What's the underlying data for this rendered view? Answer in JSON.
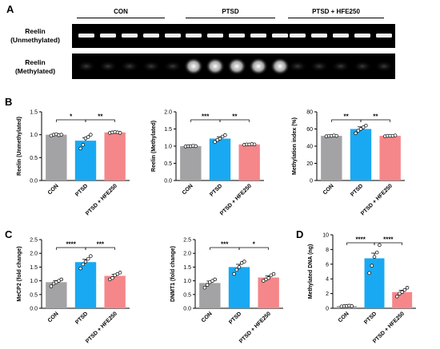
{
  "figure": {
    "panel_labels": [
      "A",
      "B",
      "C",
      "D"
    ],
    "gel": {
      "groups": [
        "CON",
        "PTSD",
        "PTSD + HFE250"
      ],
      "rows": [
        {
          "line1": "Reelin",
          "line2": "(Unmethylated)"
        },
        {
          "line1": "Reelin",
          "line2": "(Methylated)"
        }
      ],
      "lanes_per_group": 5
    }
  },
  "colors": {
    "CON": "#a3a3a6",
    "PTSD": "#19a9f2",
    "PTSD + HFE250": "#f5878a"
  },
  "chart_data": [
    {
      "id": "B1",
      "type": "bar",
      "categories": [
        "CON",
        "PTSD",
        "PTSD + HFE250"
      ],
      "values": [
        1.0,
        0.87,
        1.05
      ],
      "errors": [
        0.02,
        0.06,
        0.015
      ],
      "points": [
        [
          0.98,
          1.0,
          1.01,
          0.99,
          1.0
        ],
        [
          0.7,
          0.78,
          0.92,
          0.95,
          1.0
        ],
        [
          1.04,
          1.05,
          1.06,
          1.05,
          1.04
        ]
      ],
      "ylabel": "Reelin (Unmethylated)",
      "ylim": [
        0,
        1.5
      ],
      "yticks": [
        "0.0",
        "0.5",
        "1.0",
        "1.5"
      ],
      "sig": [
        {
          "from": 0,
          "to": 1,
          "label": "*"
        },
        {
          "from": 1,
          "to": 2,
          "label": "**"
        }
      ]
    },
    {
      "id": "B2",
      "type": "bar",
      "categories": [
        "CON",
        "PTSD",
        "PTSD + HFE250"
      ],
      "values": [
        1.0,
        1.22,
        1.05
      ],
      "errors": [
        0.01,
        0.05,
        0.01
      ],
      "points": [
        [
          0.99,
          1.0,
          1.0,
          1.01,
          1.0
        ],
        [
          1.12,
          1.18,
          1.22,
          1.28,
          1.32
        ],
        [
          1.04,
          1.05,
          1.05,
          1.06,
          1.05
        ]
      ],
      "ylabel": "Reelin (Methylated)",
      "ylim": [
        0,
        2.0
      ],
      "yticks": [
        "0.0",
        "0.5",
        "1.0",
        "1.5",
        "2.0"
      ],
      "sig": [
        {
          "from": 0,
          "to": 1,
          "label": "***"
        },
        {
          "from": 1,
          "to": 2,
          "label": "**"
        }
      ]
    },
    {
      "id": "B3",
      "type": "bar",
      "categories": [
        "CON",
        "PTSD",
        "PTSD + HFE250"
      ],
      "values": [
        52,
        60,
        52
      ],
      "errors": [
        0.5,
        2.5,
        0.5
      ],
      "points": [
        [
          51.5,
          52,
          52,
          52.5,
          52
        ],
        [
          55,
          58,
          60,
          62,
          64
        ],
        [
          51.5,
          52,
          52,
          52,
          52.5
        ]
      ],
      "ylabel": "Methylation index (%)",
      "ylim": [
        0,
        80
      ],
      "yticks": [
        "0",
        "20",
        "40",
        "60",
        "80"
      ],
      "sig": [
        {
          "from": 0,
          "to": 1,
          "label": "**"
        },
        {
          "from": 1,
          "to": 2,
          "label": "**"
        }
      ]
    },
    {
      "id": "C1",
      "type": "bar",
      "categories": [
        "CON",
        "PTSD",
        "PTSD + HFE250"
      ],
      "values": [
        0.95,
        1.68,
        1.18
      ],
      "errors": [
        0.06,
        0.1,
        0.06
      ],
      "points": [
        [
          0.8,
          0.9,
          0.95,
          1.0,
          1.05
        ],
        [
          1.45,
          1.6,
          1.7,
          1.8,
          1.9
        ],
        [
          1.05,
          1.1,
          1.2,
          1.25,
          1.3
        ]
      ],
      "ylabel": "MeCP2 (fold change)",
      "ylim": [
        0,
        2.5
      ],
      "yticks": [
        "0.0",
        "0.5",
        "1.0",
        "1.5",
        "2.0",
        "2.5"
      ],
      "sig": [
        {
          "from": 0,
          "to": 1,
          "label": "****"
        },
        {
          "from": 1,
          "to": 2,
          "label": "***"
        }
      ]
    },
    {
      "id": "C2",
      "type": "bar",
      "categories": [
        "CON",
        "PTSD",
        "PTSD + HFE250"
      ],
      "values": [
        0.92,
        1.5,
        1.12
      ],
      "errors": [
        0.07,
        0.1,
        0.06
      ],
      "points": [
        [
          0.75,
          0.85,
          0.95,
          1.0,
          1.05
        ],
        [
          1.25,
          1.4,
          1.5,
          1.65,
          1.7
        ],
        [
          1.0,
          1.05,
          1.1,
          1.2,
          1.25
        ]
      ],
      "ylabel": "DNMT1 (fold change)",
      "ylim": [
        0,
        2.5
      ],
      "yticks": [
        "0.0",
        "0.5",
        "1.0",
        "1.5",
        "2.0",
        "2.5"
      ],
      "sig": [
        {
          "from": 0,
          "to": 1,
          "label": "***"
        },
        {
          "from": 1,
          "to": 2,
          "label": "*"
        }
      ]
    },
    {
      "id": "D",
      "type": "bar",
      "categories": [
        "CON",
        "PTSD",
        "PTSD + HFE250"
      ],
      "values": [
        0.3,
        6.8,
        2.2
      ],
      "errors": [
        0.05,
        0.7,
        0.25
      ],
      "points": [
        [
          0.25,
          0.3,
          0.3,
          0.35,
          0.3
        ],
        [
          4.8,
          5.8,
          7.0,
          7.6,
          8.6
        ],
        [
          1.6,
          2.0,
          2.2,
          2.5,
          2.8
        ]
      ],
      "ylabel": "Methylated DNA (ng)",
      "ylim": [
        0,
        10
      ],
      "yticks": [
        "0",
        "2",
        "4",
        "6",
        "8",
        "10"
      ],
      "sig": [
        {
          "from": 0,
          "to": 1,
          "label": "****"
        },
        {
          "from": 1,
          "to": 2,
          "label": "****"
        }
      ]
    }
  ]
}
